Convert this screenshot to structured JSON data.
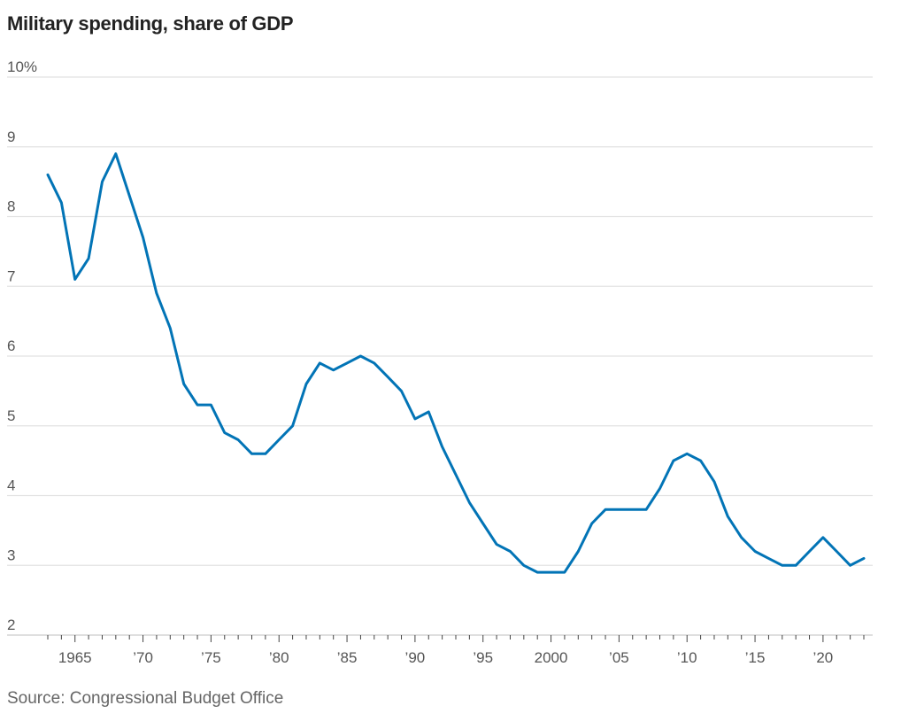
{
  "chart_data": {
    "type": "line",
    "title": "Military spending, share of GDP",
    "source": "Source: Congressional Budget Office",
    "xlabel": "",
    "ylabel": "",
    "ylim": [
      2,
      10
    ],
    "xlim": [
      1963,
      2023
    ],
    "grid": true,
    "y_ticks": [
      {
        "value": 10,
        "label": "10%"
      },
      {
        "value": 9,
        "label": "9"
      },
      {
        "value": 8,
        "label": "8"
      },
      {
        "value": 7,
        "label": "7"
      },
      {
        "value": 6,
        "label": "6"
      },
      {
        "value": 5,
        "label": "5"
      },
      {
        "value": 4,
        "label": "4"
      },
      {
        "value": 3,
        "label": "3"
      },
      {
        "value": 2,
        "label": "2"
      }
    ],
    "x_ticks": [
      {
        "value": 1965,
        "label": "1965"
      },
      {
        "value": 1970,
        "label": "’70"
      },
      {
        "value": 1975,
        "label": "’75"
      },
      {
        "value": 1980,
        "label": "’80"
      },
      {
        "value": 1985,
        "label": "’85"
      },
      {
        "value": 1990,
        "label": "’90"
      },
      {
        "value": 1995,
        "label": "’95"
      },
      {
        "value": 2000,
        "label": "2000"
      },
      {
        "value": 2005,
        "label": "’05"
      },
      {
        "value": 2010,
        "label": "’10"
      },
      {
        "value": 2015,
        "label": "’15"
      },
      {
        "value": 2020,
        "label": "’20"
      }
    ],
    "series": [
      {
        "name": "Military spending, share of GDP",
        "color": "#0274b6",
        "x": [
          1963,
          1964,
          1965,
          1966,
          1967,
          1968,
          1969,
          1970,
          1971,
          1972,
          1973,
          1974,
          1975,
          1976,
          1977,
          1978,
          1979,
          1980,
          1981,
          1982,
          1983,
          1984,
          1985,
          1986,
          1987,
          1988,
          1989,
          1990,
          1991,
          1992,
          1993,
          1994,
          1995,
          1996,
          1997,
          1998,
          1999,
          2000,
          2001,
          2002,
          2003,
          2004,
          2005,
          2006,
          2007,
          2008,
          2009,
          2010,
          2011,
          2012,
          2013,
          2014,
          2015,
          2016,
          2017,
          2018,
          2019,
          2020,
          2021,
          2022,
          2023
        ],
        "values": [
          8.6,
          8.2,
          7.1,
          7.4,
          8.5,
          8.9,
          8.3,
          7.7,
          6.9,
          6.4,
          5.6,
          5.3,
          5.3,
          4.9,
          4.8,
          4.6,
          4.6,
          4.8,
          5.0,
          5.6,
          5.9,
          5.8,
          5.9,
          6.0,
          5.9,
          5.7,
          5.5,
          5.1,
          5.2,
          4.7,
          4.3,
          3.9,
          3.6,
          3.3,
          3.2,
          3.0,
          2.9,
          2.9,
          2.9,
          3.2,
          3.6,
          3.8,
          3.8,
          3.8,
          3.8,
          4.1,
          4.5,
          4.6,
          4.5,
          4.2,
          3.7,
          3.4,
          3.2,
          3.1,
          3.0,
          3.0,
          3.2,
          3.4,
          3.2,
          3.0,
          3.1
        ]
      }
    ]
  }
}
